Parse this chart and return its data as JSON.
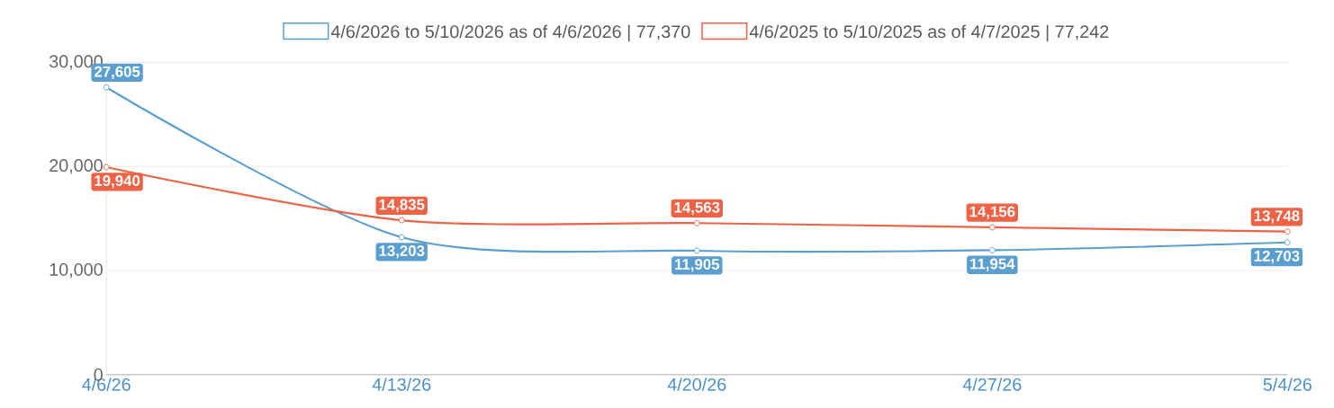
{
  "chart_data": {
    "type": "line",
    "categories": [
      "4/6/26",
      "4/13/26",
      "4/20/26",
      "4/27/26",
      "5/4/26"
    ],
    "series": [
      {
        "name": "4/6/2026 to 5/10/2026 as of 4/6/2026 | 77,370",
        "color": "#5a9fcf",
        "values": [
          27605,
          13203,
          11905,
          11954,
          12703
        ],
        "value_labels": [
          "27,605",
          "13,203",
          "11,905",
          "11,954",
          "12,703"
        ]
      },
      {
        "name": "4/6/2025 to 5/10/2025 as of 4/7/2025 | 77,242",
        "color": "#ee6346",
        "values": [
          19940,
          14835,
          14563,
          14156,
          13748
        ],
        "value_labels": [
          "19,940",
          "14,835",
          "14,563",
          "14,156",
          "13,748"
        ]
      }
    ],
    "ylim": [
      0,
      30000
    ],
    "yticks": [
      0,
      {
        "value": 10000,
        "label": "10,000"
      },
      {
        "value": 20000,
        "label": "20,000"
      },
      {
        "value": 30000,
        "label": "30,000"
      }
    ],
    "grid": "y",
    "legend": "top",
    "marker": "circle"
  }
}
